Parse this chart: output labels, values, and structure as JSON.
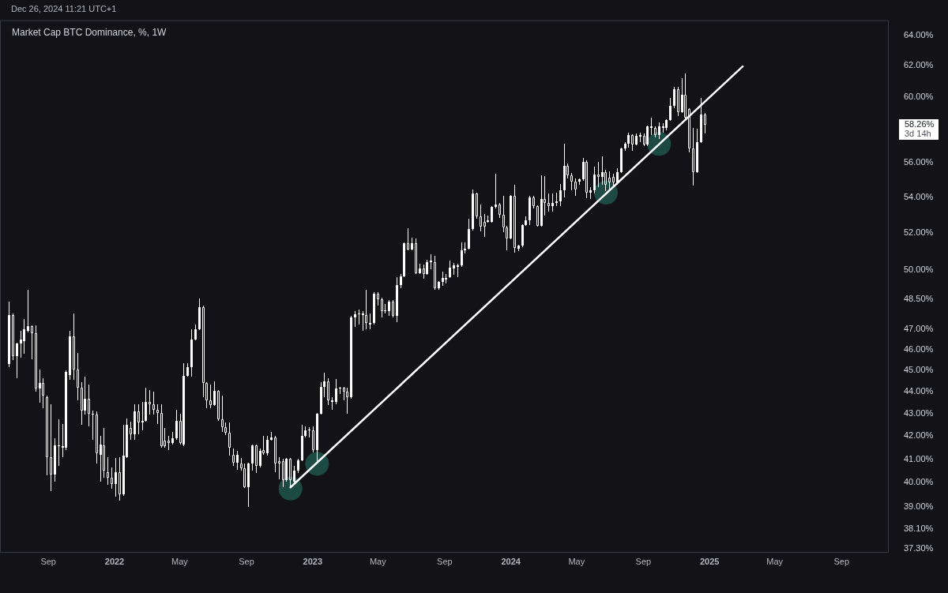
{
  "chart_data": {
    "type": "candlestick",
    "title": "Market Cap BTC Dominance, %, 1W",
    "subtitle": "Dec 26, 2024 11:21 UTC+1",
    "color": "#ffffff",
    "x": [
      "2021-06-21",
      "2021-06-28",
      "2021-07-05",
      "2021-07-12",
      "2021-07-19",
      "2021-07-26",
      "2021-08-02",
      "2021-08-09",
      "2021-08-16",
      "2021-08-23",
      "2021-08-30",
      "2021-09-06",
      "2021-09-13",
      "2021-09-20",
      "2021-09-27",
      "2021-10-04",
      "2021-10-11",
      "2021-10-18",
      "2021-10-25",
      "2021-11-01",
      "2021-11-08",
      "2021-11-15",
      "2021-11-22",
      "2021-11-29",
      "2021-12-06",
      "2021-12-13",
      "2021-12-20",
      "2021-12-27",
      "2022-01-03",
      "2022-01-10",
      "2022-01-17",
      "2022-01-24",
      "2022-01-31",
      "2022-02-07",
      "2022-02-14",
      "2022-02-21",
      "2022-02-28",
      "2022-03-07",
      "2022-03-14",
      "2022-03-21",
      "2022-03-28",
      "2022-04-04",
      "2022-04-11",
      "2022-04-18",
      "2022-04-25",
      "2022-05-02",
      "2022-05-09",
      "2022-05-16",
      "2022-05-23",
      "2022-05-30",
      "2022-06-06",
      "2022-06-13",
      "2022-06-20",
      "2022-06-27",
      "2022-07-04",
      "2022-07-11",
      "2022-07-18",
      "2022-07-25",
      "2022-08-01",
      "2022-08-08",
      "2022-08-15",
      "2022-08-22",
      "2022-08-29",
      "2022-09-05",
      "2022-09-12",
      "2022-09-19",
      "2022-09-26",
      "2022-10-03",
      "2022-10-10",
      "2022-10-17",
      "2022-10-24",
      "2022-10-31",
      "2022-11-07",
      "2022-11-14",
      "2022-11-21",
      "2022-11-28",
      "2022-12-05",
      "2022-12-12",
      "2022-12-19",
      "2022-12-26",
      "2023-01-02",
      "2023-01-09",
      "2023-01-16",
      "2023-01-23",
      "2023-01-30",
      "2023-02-06",
      "2023-02-13",
      "2023-02-20",
      "2023-02-27",
      "2023-03-06",
      "2023-03-13",
      "2023-03-20",
      "2023-03-27",
      "2023-04-03",
      "2023-04-10",
      "2023-04-17",
      "2023-04-24",
      "2023-05-01",
      "2023-05-08",
      "2023-05-15",
      "2023-05-22",
      "2023-05-29",
      "2023-06-05",
      "2023-06-12",
      "2023-06-19",
      "2023-06-26",
      "2023-07-03",
      "2023-07-10",
      "2023-07-17",
      "2023-07-24",
      "2023-07-31",
      "2023-08-07",
      "2023-08-14",
      "2023-08-21",
      "2023-08-28",
      "2023-09-04",
      "2023-09-11",
      "2023-09-18",
      "2023-09-25",
      "2023-10-02",
      "2023-10-09",
      "2023-10-16",
      "2023-10-23",
      "2023-10-30",
      "2023-11-06",
      "2023-11-13",
      "2023-11-20",
      "2023-11-27",
      "2023-12-04",
      "2023-12-11",
      "2023-12-18",
      "2023-12-25",
      "2024-01-01",
      "2024-01-08",
      "2024-01-15",
      "2024-01-22",
      "2024-01-29",
      "2024-02-05",
      "2024-02-12",
      "2024-02-19",
      "2024-02-26",
      "2024-03-04",
      "2024-03-11",
      "2024-03-18",
      "2024-03-25",
      "2024-04-01",
      "2024-04-08",
      "2024-04-15",
      "2024-04-22",
      "2024-04-29",
      "2024-05-06",
      "2024-05-13",
      "2024-05-20",
      "2024-05-27",
      "2024-06-03",
      "2024-06-10",
      "2024-06-17",
      "2024-06-24",
      "2024-07-01",
      "2024-07-08",
      "2024-07-15",
      "2024-07-22",
      "2024-07-29",
      "2024-08-05",
      "2024-08-12",
      "2024-08-19",
      "2024-08-26",
      "2024-09-02",
      "2024-09-09",
      "2024-09-16",
      "2024-09-23",
      "2024-09-30",
      "2024-10-07",
      "2024-10-14",
      "2024-10-21",
      "2024-10-28",
      "2024-11-04",
      "2024-11-11",
      "2024-11-18",
      "2024-11-25",
      "2024-12-02",
      "2024-12-09",
      "2024-12-16",
      "2024-12-23"
    ],
    "ohlc": [
      [
        45.3,
        48.4,
        45.15,
        47.7
      ],
      [
        47.7,
        47.8,
        45.5,
        45.7
      ],
      [
        45.7,
        46.35,
        44.65,
        46.3
      ],
      [
        46.3,
        46.9,
        45.6,
        46.5
      ],
      [
        46.4,
        47.5,
        45.8,
        47.0
      ],
      [
        46.9,
        49.0,
        46.85,
        47.15
      ],
      [
        47.15,
        47.2,
        45.55,
        46.8
      ],
      [
        46.8,
        47.2,
        44.0,
        44.15
      ],
      [
        44.15,
        45.05,
        43.5,
        44.4
      ],
      [
        44.4,
        44.65,
        43.25,
        43.85
      ],
      [
        43.75,
        43.85,
        40.3,
        41.1
      ],
      [
        41.1,
        43.45,
        39.65,
        40.35
      ],
      [
        40.35,
        41.9,
        40.05,
        41.6
      ],
      [
        41.6,
        42.75,
        40.7,
        41.55
      ],
      [
        41.55,
        42.55,
        41.1,
        41.5
      ],
      [
        41.5,
        45.0,
        41.4,
        44.95
      ],
      [
        44.8,
        46.9,
        44.55,
        46.65
      ],
      [
        46.65,
        47.8,
        44.55,
        45.05
      ],
      [
        45.05,
        45.85,
        43.6,
        44.2
      ],
      [
        44.2,
        44.45,
        42.5,
        43.15
      ],
      [
        43.15,
        44.7,
        42.95,
        43.7
      ],
      [
        43.7,
        44.35,
        42.45,
        43.0
      ],
      [
        43.0,
        43.15,
        41.85,
        42.95
      ],
      [
        42.95,
        43.1,
        40.8,
        41.25
      ],
      [
        41.2,
        42.0,
        40.05,
        41.65
      ],
      [
        41.6,
        42.35,
        40.2,
        40.5
      ],
      [
        40.45,
        41.1,
        39.9,
        40.2
      ],
      [
        40.2,
        40.65,
        39.75,
        39.95
      ],
      [
        39.95,
        41.05,
        39.4,
        40.45
      ],
      [
        40.45,
        41.1,
        39.25,
        39.5
      ],
      [
        39.5,
        42.5,
        39.45,
        41.15
      ],
      [
        41.1,
        42.8,
        41.05,
        42.5
      ],
      [
        42.35,
        42.65,
        41.85,
        42.1
      ],
      [
        42.1,
        43.45,
        41.85,
        43.1
      ],
      [
        43.1,
        43.45,
        42.1,
        42.6
      ],
      [
        42.6,
        43.55,
        42.25,
        42.7
      ],
      [
        42.7,
        44.2,
        42.65,
        43.55
      ],
      [
        43.55,
        44.1,
        42.95,
        43.45
      ],
      [
        43.45,
        44.0,
        42.95,
        43.2
      ],
      [
        43.2,
        43.45,
        42.55,
        43.05
      ],
      [
        43.05,
        43.45,
        41.5,
        41.55
      ],
      [
        41.8,
        42.35,
        41.5,
        41.55
      ],
      [
        41.8,
        42.0,
        41.4,
        41.7
      ],
      [
        41.7,
        42.2,
        41.65,
        41.9
      ],
      [
        41.9,
        43.2,
        41.85,
        42.7
      ],
      [
        42.7,
        43.0,
        41.65,
        41.7
      ],
      [
        41.65,
        45.35,
        41.55,
        44.75
      ],
      [
        44.75,
        45.35,
        44.7,
        45.15
      ],
      [
        45.15,
        47.0,
        44.7,
        46.5
      ],
      [
        46.5,
        47.25,
        46.45,
        47.0
      ],
      [
        47.0,
        48.55,
        46.95,
        48.1
      ],
      [
        48.1,
        48.2,
        43.75,
        44.4
      ],
      [
        44.4,
        44.45,
        43.25,
        43.6
      ],
      [
        43.6,
        44.35,
        43.25,
        43.4
      ],
      [
        43.4,
        44.5,
        43.35,
        44.05
      ],
      [
        44.05,
        44.1,
        42.7,
        42.75
      ],
      [
        42.75,
        43.85,
        42.2,
        42.4
      ],
      [
        42.4,
        42.6,
        42.05,
        42.15
      ],
      [
        42.15,
        42.6,
        41.15,
        41.5
      ],
      [
        41.2,
        41.45,
        40.7,
        40.85
      ],
      [
        40.85,
        41.35,
        40.55,
        41.2
      ],
      [
        40.8,
        41.05,
        40.5,
        40.6
      ],
      [
        40.6,
        40.8,
        39.8,
        39.8
      ],
      [
        39.8,
        40.85,
        39.0,
        40.8
      ],
      [
        40.8,
        41.65,
        40.5,
        41.6
      ],
      [
        41.6,
        41.65,
        40.4,
        40.7
      ],
      [
        40.7,
        41.45,
        40.65,
        41.35
      ],
      [
        41.4,
        42.0,
        41.2,
        41.25
      ],
      [
        41.25,
        42.0,
        41.15,
        41.85
      ],
      [
        41.85,
        42.2,
        41.8,
        41.95
      ],
      [
        41.95,
        42.0,
        40.45,
        40.8
      ],
      [
        40.9,
        41.1,
        40.15,
        40.8
      ],
      [
        40.9,
        41.0,
        39.8,
        40.1
      ],
      [
        40.1,
        41.05,
        40.05,
        41.0
      ],
      [
        41.0,
        41.05,
        39.8,
        40.1
      ],
      [
        40.05,
        40.7,
        39.95,
        40.5
      ],
      [
        40.5,
        41.0,
        40.4,
        40.95
      ],
      [
        40.95,
        42.5,
        40.9,
        42.0
      ],
      [
        42.0,
        42.45,
        41.95,
        42.25
      ],
      [
        42.25,
        42.4,
        41.95,
        42.3
      ],
      [
        42.25,
        42.45,
        41.3,
        41.4
      ],
      [
        41.4,
        43.05,
        40.8,
        43.0
      ],
      [
        43.0,
        44.45,
        42.95,
        44.25
      ],
      [
        44.25,
        44.9,
        43.75,
        44.5
      ],
      [
        44.5,
        44.65,
        43.4,
        43.6
      ],
      [
        43.6,
        43.75,
        43.2,
        43.55
      ],
      [
        43.55,
        44.6,
        43.45,
        44.15
      ],
      [
        44.15,
        44.25,
        43.9,
        44.2
      ],
      [
        44.2,
        44.2,
        43.6,
        44.0
      ],
      [
        44.0,
        44.2,
        43.0,
        43.75
      ],
      [
        43.75,
        47.65,
        43.7,
        47.6
      ],
      [
        47.6,
        47.9,
        47.1,
        47.75
      ],
      [
        47.8,
        48.0,
        47.25,
        47.75
      ],
      [
        47.8,
        47.9,
        46.9,
        47.7
      ],
      [
        47.7,
        49.0,
        47.0,
        47.3
      ],
      [
        47.3,
        47.8,
        47.0,
        47.25
      ],
      [
        47.3,
        48.85,
        47.25,
        48.8
      ],
      [
        48.8,
        48.85,
        48.2,
        48.5
      ],
      [
        48.5,
        48.6,
        47.6,
        47.9
      ],
      [
        47.95,
        48.25,
        47.8,
        47.9
      ],
      [
        47.9,
        48.45,
        47.65,
        48.4
      ],
      [
        48.4,
        48.45,
        47.6,
        47.65
      ],
      [
        47.65,
        49.65,
        47.35,
        49.25
      ],
      [
        49.25,
        49.8,
        49.05,
        49.7
      ],
      [
        49.7,
        51.5,
        49.65,
        51.45
      ],
      [
        51.45,
        52.25,
        51.1,
        51.1
      ],
      [
        51.1,
        51.75,
        51.05,
        51.45
      ],
      [
        51.45,
        51.7,
        49.8,
        49.85
      ],
      [
        49.85,
        50.35,
        49.8,
        50.1
      ],
      [
        50.1,
        50.3,
        49.55,
        49.8
      ],
      [
        49.8,
        50.55,
        49.75,
        50.45
      ],
      [
        50.45,
        50.85,
        50.05,
        50.5
      ],
      [
        50.45,
        50.75,
        49.0,
        49.05
      ],
      [
        49.05,
        49.45,
        49.0,
        49.4
      ],
      [
        49.4,
        49.95,
        49.2,
        49.6
      ],
      [
        49.6,
        49.8,
        49.3,
        49.5
      ],
      [
        49.65,
        50.5,
        49.6,
        50.15
      ],
      [
        50.1,
        50.4,
        49.75,
        50.25
      ],
      [
        50.2,
        50.35,
        49.65,
        50.25
      ],
      [
        50.25,
        51.5,
        50.2,
        51.05
      ],
      [
        51.05,
        51.5,
        50.9,
        51.15
      ],
      [
        51.15,
        52.8,
        51.1,
        52.2
      ],
      [
        52.2,
        54.45,
        52.15,
        54.2
      ],
      [
        54.2,
        54.25,
        52.8,
        52.9
      ],
      [
        52.9,
        53.6,
        52.1,
        52.35
      ],
      [
        52.6,
        53.05,
        51.8,
        52.35
      ],
      [
        52.6,
        52.95,
        52.55,
        52.7
      ],
      [
        52.6,
        53.5,
        52.55,
        53.45
      ],
      [
        53.45,
        55.35,
        53.35,
        53.6
      ],
      [
        53.6,
        53.65,
        52.85,
        53.0
      ],
      [
        53.0,
        54.05,
        52.05,
        52.3
      ],
      [
        52.3,
        52.4,
        51.05,
        51.7
      ],
      [
        51.7,
        54.1,
        51.65,
        54.05
      ],
      [
        54.05,
        54.7,
        50.95,
        51.2
      ],
      [
        51.15,
        51.35,
        51.0,
        51.3
      ],
      [
        51.3,
        52.5,
        51.25,
        52.45
      ],
      [
        52.45,
        52.9,
        52.4,
        52.7
      ],
      [
        52.7,
        54.05,
        52.45,
        54.0
      ],
      [
        54.0,
        54.05,
        53.35,
        53.5
      ],
      [
        53.5,
        53.55,
        52.35,
        52.4
      ],
      [
        52.4,
        55.25,
        52.35,
        53.9
      ],
      [
        53.9,
        55.2,
        52.95,
        53.65
      ],
      [
        53.65,
        54.2,
        53.2,
        53.5
      ],
      [
        53.5,
        54.2,
        53.2,
        53.65
      ],
      [
        53.65,
        54.25,
        53.5,
        53.75
      ],
      [
        53.75,
        54.75,
        53.5,
        54.4
      ],
      [
        54.4,
        57.1,
        54.0,
        55.8
      ],
      [
        55.8,
        55.95,
        55.05,
        55.25
      ],
      [
        55.25,
        55.4,
        54.4,
        54.9
      ],
      [
        54.9,
        55.05,
        54.05,
        54.45
      ],
      [
        54.9,
        55.05,
        54.7,
        55.0
      ],
      [
        55.0,
        56.25,
        54.95,
        56.05
      ],
      [
        56.05,
        56.15,
        53.95,
        54.25
      ],
      [
        54.25,
        54.55,
        53.9,
        54.4
      ],
      [
        54.4,
        55.75,
        54.2,
        55.3
      ],
      [
        55.3,
        56.05,
        54.55,
        55.15
      ],
      [
        55.15,
        56.35,
        54.7,
        55.45
      ],
      [
        55.45,
        55.55,
        54.35,
        54.7
      ],
      [
        55.1,
        55.5,
        54.45,
        54.85
      ],
      [
        55.15,
        55.35,
        54.55,
        54.85
      ],
      [
        54.85,
        55.65,
        54.7,
        55.45
      ],
      [
        55.45,
        56.9,
        55.4,
        56.85
      ],
      [
        56.85,
        57.2,
        56.7,
        57.1
      ],
      [
        57.1,
        57.8,
        56.9,
        57.65
      ],
      [
        57.65,
        57.7,
        56.7,
        57.05
      ],
      [
        57.05,
        57.75,
        57.0,
        57.6
      ],
      [
        57.55,
        57.8,
        57.2,
        57.65
      ],
      [
        57.6,
        57.75,
        56.95,
        57.05
      ],
      [
        57.05,
        58.2,
        56.95,
        58.15
      ],
      [
        58.15,
        58.7,
        57.65,
        58.05
      ],
      [
        58.05,
        58.15,
        57.5,
        57.65
      ],
      [
        57.65,
        58.4,
        57.4,
        58.15
      ],
      [
        58.15,
        58.35,
        57.8,
        58.05
      ],
      [
        58.05,
        58.6,
        57.95,
        58.55
      ],
      [
        58.55,
        59.95,
        58.5,
        59.45
      ],
      [
        59.45,
        60.65,
        59.3,
        60.5
      ],
      [
        60.5,
        60.65,
        58.8,
        59.05
      ],
      [
        59.05,
        61.2,
        59.0,
        60.15
      ],
      [
        60.15,
        61.5,
        58.55,
        58.7
      ],
      [
        59.25,
        59.3,
        56.6,
        56.85
      ],
      [
        56.85,
        58.05,
        54.65,
        55.45
      ],
      [
        55.45,
        58.0,
        55.4,
        57.2
      ],
      [
        57.2,
        59.95,
        57.15,
        58.9
      ],
      [
        58.9,
        59.0,
        57.75,
        58.26
      ]
    ],
    "series": [
      {
        "type": "scatter",
        "marker": "circle",
        "color": "#1d4a42",
        "x": [
          "2022-11-21",
          "2023-01-09",
          "2024-06-24",
          "2024-09-30"
        ],
        "values": [
          39.75,
          40.8,
          54.25,
          57.1
        ]
      },
      {
        "type": "line",
        "color": "#ffffff",
        "x": [
          "2022-11-21",
          "2025-03-03"
        ],
        "values": [
          39.8,
          61.95
        ]
      }
    ],
    "xlim": [
      "2021-06-04",
      "2025-11-27"
    ],
    "xticks": [
      {
        "value": "2021-09",
        "label": "Sep"
      },
      "2022",
      {
        "value": "2022-05",
        "label": "May"
      },
      {
        "value": "2022-09",
        "label": "Sep"
      },
      "2023",
      {
        "value": "2023-05",
        "label": "May"
      },
      {
        "value": "2023-09",
        "label": "Sep"
      },
      "2024",
      {
        "value": "2024-05",
        "label": "May"
      },
      {
        "value": "2024-09",
        "label": "Sep"
      },
      "2025",
      {
        "value": "2025-05",
        "label": "May"
      },
      {
        "value": "2025-09",
        "label": "Sep"
      }
    ],
    "ylim": [
      37.16,
      65.03
    ],
    "yticks": [
      {
        "value": 37.3,
        "label": "37.30%"
      },
      {
        "value": 38.1,
        "label": "38.10%"
      },
      {
        "value": 39,
        "label": "39.00%"
      },
      {
        "value": 40,
        "label": "40.00%"
      },
      {
        "value": 41,
        "label": "41.00%"
      },
      {
        "value": 42,
        "label": "42.00%"
      },
      {
        "value": 43,
        "label": "43.00%"
      },
      {
        "value": 44,
        "label": "44.00%"
      },
      {
        "value": 45,
        "label": "45.00%"
      },
      {
        "value": 46,
        "label": "46.00%"
      },
      {
        "value": 47,
        "label": "47.00%"
      },
      {
        "value": 48.5,
        "label": "48.50%"
      },
      {
        "value": 50,
        "label": "50.00%"
      },
      {
        "value": 52,
        "label": "52.00%"
      },
      {
        "value": 54,
        "label": "54.00%"
      },
      {
        "value": 56,
        "label": "56.00%"
      },
      {
        "value": 60,
        "label": "60.00%"
      },
      {
        "value": 62,
        "label": "62.00%"
      },
      {
        "value": 64,
        "label": "64.00%"
      }
    ],
    "log": true,
    "grid": false,
    "legend": false,
    "annotations": [
      "58.26%",
      "3d 14h"
    ]
  }
}
